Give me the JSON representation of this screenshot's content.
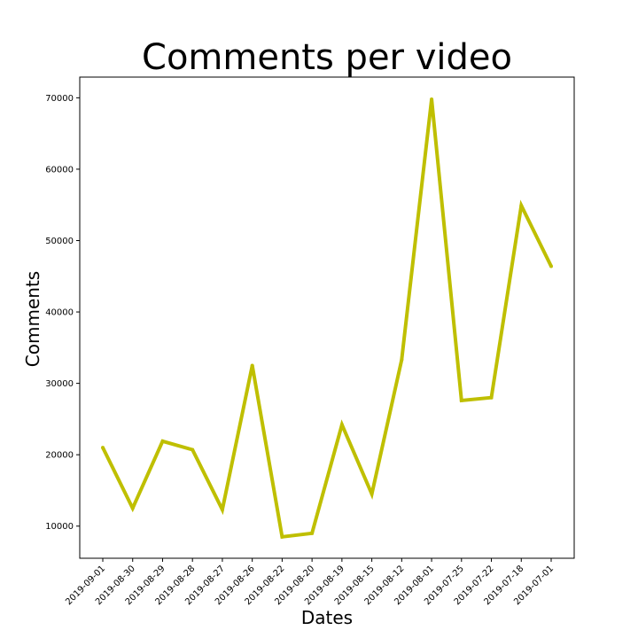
{
  "chart_data": {
    "type": "line",
    "title": "Comments per video",
    "xlabel": "Dates",
    "ylabel": "Comments",
    "categories": [
      "2019-09-01",
      "2019-08-30",
      "2019-08-29",
      "2019-08-28",
      "2019-08-27",
      "2019-08-26",
      "2019-08-22",
      "2019-08-20",
      "2019-08-19",
      "2019-08-15",
      "2019-08-12",
      "2019-08-01",
      "2019-07-25",
      "2019-07-22",
      "2019-07-18",
      "2019-07-01"
    ],
    "series": [
      {
        "values": [
          21000,
          12500,
          21900,
          20700,
          12300,
          32500,
          8500,
          9000,
          24200,
          14500,
          33300,
          69800,
          27600,
          28000,
          54900,
          46400
        ],
        "color": "#bfbf00"
      }
    ],
    "ylim": [
      5500,
      72900
    ],
    "yticks": [
      10000,
      20000,
      30000,
      40000,
      50000,
      60000,
      70000
    ],
    "grid": false,
    "legend": "none"
  }
}
